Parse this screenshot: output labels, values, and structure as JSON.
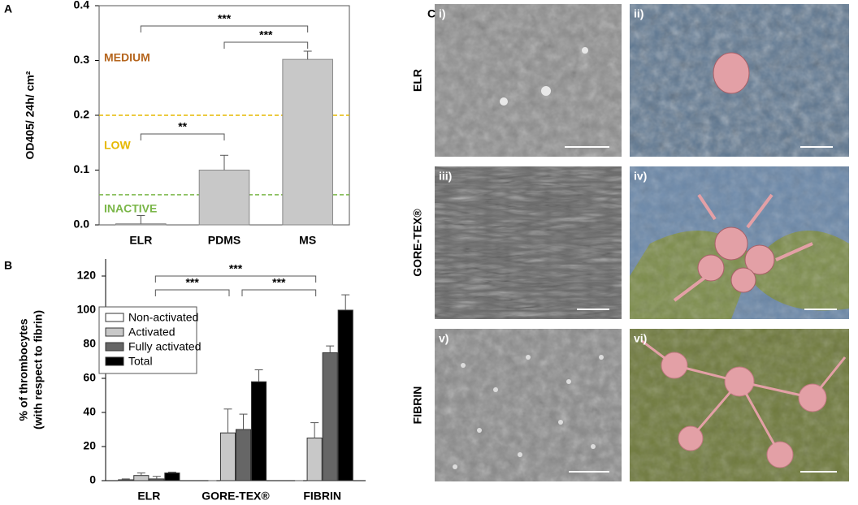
{
  "chart_data": [
    {
      "type": "bar",
      "panel_label": "A",
      "y_label": "OD405/ 24h/ cm²",
      "categories": [
        "ELR",
        "PDMS",
        "MS"
      ],
      "values": [
        0.002,
        0.1,
        0.302
      ],
      "errors": [
        0.015,
        0.027,
        0.015
      ],
      "color": "#c8c8c8",
      "ylim": [
        0,
        0.4
      ],
      "yticks": [
        {
          "value": 0,
          "label": "0.0"
        },
        0.1,
        0.2,
        0.3,
        0.4
      ],
      "reference_lines": [
        {
          "value": 0.2,
          "color": "#e6b800"
        },
        {
          "value": 0.055,
          "color": "#7ab648"
        }
      ],
      "annotations": [
        {
          "text": "MEDIUM",
          "color": "#b5651d"
        },
        {
          "text": "LOW",
          "color": "#e6b800"
        },
        {
          "text": "INACTIVE",
          "color": "#7ab648"
        }
      ],
      "significance": [
        {
          "pair": [
            0,
            2
          ],
          "label": "***"
        },
        {
          "pair": [
            1,
            2
          ],
          "label": "***"
        },
        {
          "pair": [
            0,
            1
          ],
          "label": "**"
        }
      ]
    },
    {
      "type": "bar",
      "panel_label": "B",
      "y_label": [
        "% of thrombocytes",
        "(with respect to fibrin)"
      ],
      "categories": [
        "ELR",
        "GORE-TEX®",
        "FIBRIN"
      ],
      "ylim": [
        0,
        130
      ],
      "yticks": [
        0,
        20,
        40,
        60,
        80,
        100,
        120
      ],
      "series": [
        {
          "name": "Non-activated",
          "color": "#ffffff",
          "values": [
            0.5,
            0,
            0
          ],
          "errors": [
            0.5,
            0,
            0
          ]
        },
        {
          "name": "Activated",
          "color": "#c8c8c8",
          "values": [
            3,
            28,
            25
          ],
          "errors": [
            1.5,
            14,
            9
          ]
        },
        {
          "name": "Fully activated",
          "color": "#666666",
          "values": [
            1,
            30,
            75
          ],
          "errors": [
            1.5,
            9,
            4
          ]
        },
        {
          "name": "Total",
          "color": "#000000",
          "values": [
            4.5,
            58,
            100
          ],
          "errors": [
            0.5,
            7,
            9
          ]
        }
      ],
      "significance": [
        {
          "pair": [
            0,
            2
          ],
          "label": "***"
        },
        {
          "pair": [
            0,
            1
          ],
          "label": "***"
        },
        {
          "pair": [
            1,
            2
          ],
          "label": "***"
        }
      ]
    }
  ],
  "panel_c": {
    "label": "C",
    "rows": [
      "ELR",
      "GORE-TEX®",
      "FIBRIN"
    ],
    "images": [
      "i)",
      "ii)",
      "iii)",
      "iv)",
      "v)",
      "vi)"
    ]
  }
}
